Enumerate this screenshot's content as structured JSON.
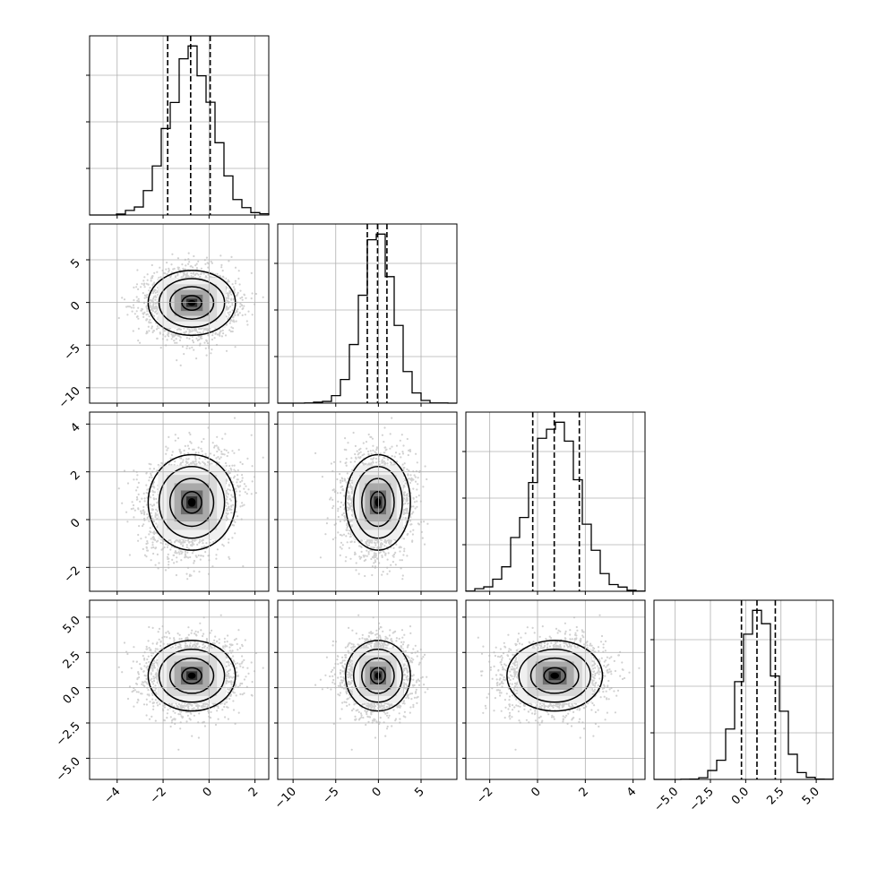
{
  "chart_data": {
    "type": "corner",
    "n_params": 4,
    "parameters": [
      {
        "index": 0,
        "range": [
          -5.2,
          2.6
        ],
        "ticks": [
          -4,
          -2,
          0,
          2
        ],
        "tick_labels": [
          "−4",
          "−2",
          "0",
          "2"
        ],
        "quantiles": [
          -1.8,
          -0.8,
          0.05
        ],
        "hist_peak_x": -0.75
      },
      {
        "index": 1,
        "range": [
          -11.8,
          9.2
        ],
        "ticks": [
          -10,
          -5,
          0,
          5
        ],
        "tick_labels": [
          "−10",
          "−5",
          "0",
          "5"
        ],
        "quantiles": [
          -1.3,
          -0.1,
          1.0
        ],
        "hist_peak_x": 0.0
      },
      {
        "index": 2,
        "range": [
          -3.0,
          4.5
        ],
        "ticks": [
          -2,
          0,
          2,
          4
        ],
        "tick_labels": [
          "−2",
          "0",
          "2",
          "4"
        ],
        "quantiles": [
          -0.2,
          0.7,
          1.75
        ],
        "hist_peak_x": 0.7
      },
      {
        "index": 3,
        "range": [
          -6.5,
          6.2
        ],
        "ticks": [
          -5.0,
          -2.5,
          0.0,
          2.5,
          5.0
        ],
        "tick_labels": [
          "−5.0",
          "−2.5",
          "0.0",
          "2.5",
          "5.0"
        ],
        "quantiles": [
          -0.3,
          0.8,
          2.1
        ],
        "hist_peak_x": 0.85
      }
    ],
    "distributions": [
      {
        "param": 0,
        "mean": -0.75,
        "sd": 0.95
      },
      {
        "param": 1,
        "mean": -0.05,
        "sd": 1.9
      },
      {
        "param": 2,
        "mean": 0.72,
        "sd": 1.0
      },
      {
        "param": 3,
        "mean": 0.85,
        "sd": 1.25
      }
    ],
    "x_tick_labels_rotated_deg": 45,
    "quantile_style": "dashed",
    "grid": true,
    "title": "",
    "xlabel": "",
    "ylabel": ""
  }
}
